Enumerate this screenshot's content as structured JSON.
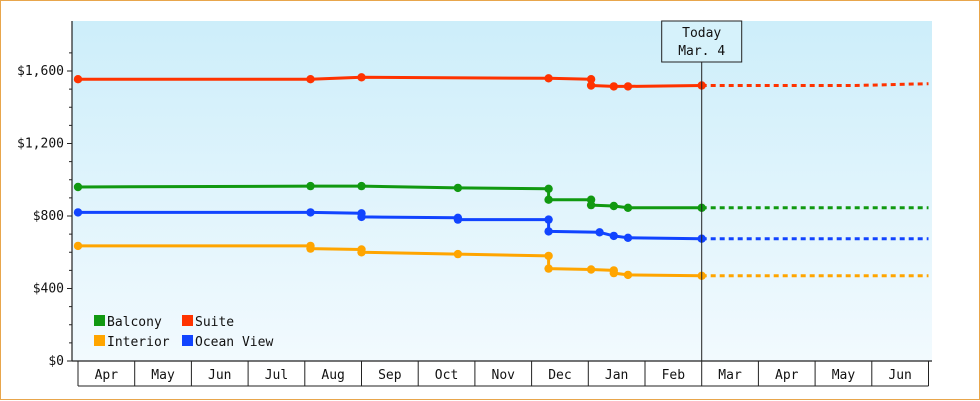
{
  "chart_data": {
    "type": "line",
    "today_annotation": {
      "line1": "Today",
      "line2": "Mar. 4"
    },
    "months": [
      "Apr",
      "May",
      "Jun",
      "Jul",
      "Aug",
      "Sep",
      "Oct",
      "Nov",
      "Dec",
      "Jan",
      "Feb",
      "Mar",
      "Apr",
      "May",
      "Jun"
    ],
    "y_ticks": [
      {
        "value": 0,
        "label": "$0"
      },
      {
        "value": 400,
        "label": "$400"
      },
      {
        "value": 800,
        "label": "$800"
      },
      {
        "value": 1200,
        "label": "$1,200"
      },
      {
        "value": 1600,
        "label": "$1,600"
      }
    ],
    "ylim": [
      0,
      1600
    ],
    "x_domain": [
      0,
      15
    ],
    "today_x": 11,
    "projection_end_x": 15,
    "legend_position": "bottom-left",
    "legend_order": [
      "Balcony",
      "Suite",
      "Interior",
      "Ocean View"
    ],
    "series": [
      {
        "name": "Suite",
        "color": "#ff3300",
        "points": [
          [
            0,
            1555
          ],
          [
            4.1,
            1555
          ],
          [
            5.0,
            1565
          ],
          [
            8.3,
            1560
          ],
          [
            9.05,
            1555
          ],
          [
            9.05,
            1520
          ],
          [
            9.45,
            1515
          ],
          [
            9.7,
            1515
          ],
          [
            11,
            1520
          ]
        ],
        "projection": [
          [
            11,
            1520
          ],
          [
            11.9,
            1520
          ],
          [
            13.7,
            1520
          ],
          [
            15,
            1530
          ]
        ]
      },
      {
        "name": "Balcony",
        "color": "#119911",
        "points": [
          [
            0,
            960
          ],
          [
            4.1,
            965
          ],
          [
            5.0,
            965
          ],
          [
            6.7,
            955
          ],
          [
            8.3,
            950
          ],
          [
            8.3,
            890
          ],
          [
            9.05,
            890
          ],
          [
            9.05,
            860
          ],
          [
            9.45,
            855
          ],
          [
            9.7,
            845
          ],
          [
            11,
            845
          ]
        ],
        "projection": [
          [
            11,
            845
          ],
          [
            15,
            845
          ]
        ]
      },
      {
        "name": "Ocean View",
        "color": "#1144ff",
        "points": [
          [
            0,
            820
          ],
          [
            4.1,
            820
          ],
          [
            5.0,
            815
          ],
          [
            5.0,
            795
          ],
          [
            6.7,
            790
          ],
          [
            6.7,
            780
          ],
          [
            8.3,
            780
          ],
          [
            8.3,
            715
          ],
          [
            9.2,
            710
          ],
          [
            9.45,
            690
          ],
          [
            9.7,
            680
          ],
          [
            11,
            675
          ]
        ],
        "projection": [
          [
            11,
            675
          ],
          [
            15,
            675
          ]
        ]
      },
      {
        "name": "Interior",
        "color": "#ffa500",
        "points": [
          [
            0,
            635
          ],
          [
            4.1,
            635
          ],
          [
            4.1,
            620
          ],
          [
            5.0,
            615
          ],
          [
            5.0,
            600
          ],
          [
            6.7,
            590
          ],
          [
            8.3,
            580
          ],
          [
            8.3,
            510
          ],
          [
            9.05,
            505
          ],
          [
            9.45,
            500
          ],
          [
            9.45,
            485
          ],
          [
            9.7,
            475
          ],
          [
            11,
            470
          ]
        ],
        "projection": [
          [
            11,
            470
          ],
          [
            15,
            470
          ]
        ]
      }
    ]
  }
}
